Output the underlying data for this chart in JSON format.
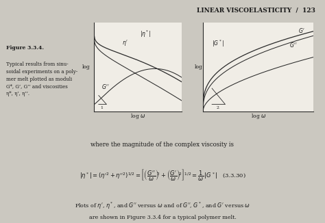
{
  "title": "LINEAR VISCOELASTICITY  /  123",
  "figure_label": "Figure 3.3.4.",
  "caption_line1": "Typical results from sinu-",
  "caption_line2": "soidal experiments on a poly-",
  "caption_line3": "mer melt plotted as moduli",
  "caption_line4": "G*, G’, G’’ and viscosities",
  "caption_line5": "η*, η’, η’’.",
  "where_text": "where the magnitude of the complex viscosity is",
  "plots_text1": "Plots of η’, η*, and G’’ versus ω and of G’’, G*, and G’ versus ω",
  "plots_text2": "are shown in Figure 3.3.4 for a typical polymer melt.",
  "bg_color": "#cbc8c0",
  "white_color": "#f0ede6",
  "text_color": "#1a1a1a",
  "line_color": "#2a2a2a",
  "header_bg": "#b8b5ad"
}
